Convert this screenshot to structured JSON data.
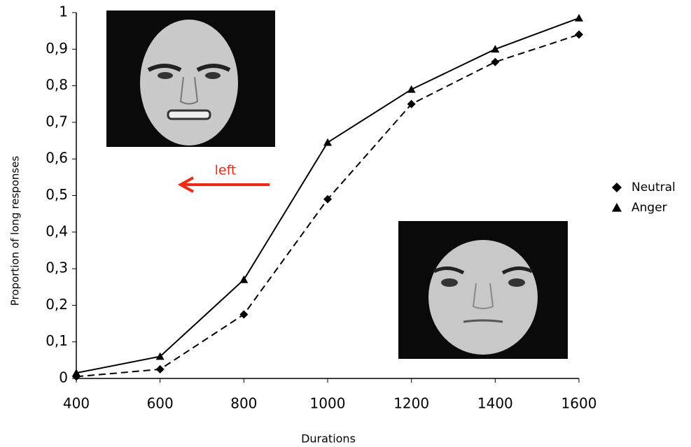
{
  "chart_data": {
    "type": "line",
    "x_label": "Durations",
    "y_label": "Proportion of long responses",
    "x": [
      400,
      600,
      800,
      1000,
      1200,
      1400,
      1600
    ],
    "series": [
      {
        "name": "Neutral",
        "color": "#000000",
        "marker": "diamond",
        "dashed": true,
        "values": [
          0.005,
          0.025,
          0.175,
          0.49,
          0.75,
          0.865,
          0.94
        ]
      },
      {
        "name": "Anger",
        "color": "#000000",
        "marker": "triangle",
        "dashed": false,
        "values": [
          0.015,
          0.06,
          0.27,
          0.645,
          0.79,
          0.9,
          0.985
        ]
      }
    ],
    "xlim": [
      400,
      1600
    ],
    "xticks": [
      400,
      600,
      800,
      1000,
      1200,
      1400,
      1600
    ],
    "ylim": [
      0,
      1
    ],
    "yticks": [
      0,
      {
        "value": 0.1,
        "label": "0,1"
      },
      {
        "value": 0.2,
        "label": "0,2"
      },
      {
        "value": 0.3,
        "label": "0,3"
      },
      {
        "value": 0.4,
        "label": "0,4"
      },
      {
        "value": 0.5,
        "label": "0,5"
      },
      {
        "value": 0.6,
        "label": "0,6"
      },
      {
        "value": 0.7,
        "label": "0,7"
      },
      {
        "value": 0.8,
        "label": "0,8"
      },
      {
        "value": 0.9,
        "label": "0,9"
      },
      1
    ],
    "legend": "right",
    "annotations": [
      {
        "text": "left",
        "color": "#ee2a16"
      }
    ]
  }
}
